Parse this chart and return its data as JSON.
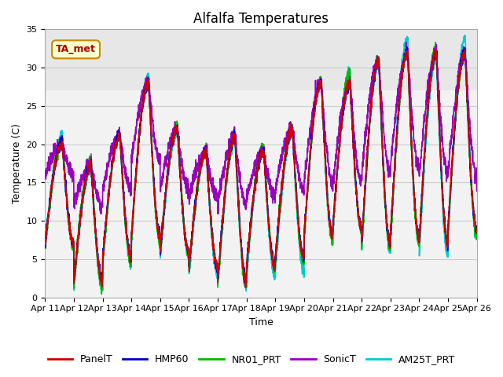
{
  "title": "Alfalfa Temperatures",
  "xlabel": "Time",
  "ylabel": "Temperature (C)",
  "ylim": [
    0,
    35
  ],
  "xlim": [
    0,
    15
  ],
  "x_tick_labels": [
    "Apr 11",
    "Apr 12",
    "Apr 13",
    "Apr 14",
    "Apr 15",
    "Apr 16",
    "Apr 17",
    "Apr 18",
    "Apr 19",
    "Apr 20",
    "Apr 21",
    "Apr 22",
    "Apr 23",
    "Apr 24",
    "Apr 25",
    "Apr 26"
  ],
  "annotation_text": "TA_met",
  "annotation_bg": "#ffffcc",
  "annotation_edge": "#cc8800",
  "annotation_text_color": "#aa0000",
  "series_colors": {
    "PanelT": "#cc0000",
    "HMP60": "#0000cc",
    "NR01_PRT": "#00bb00",
    "SonicT": "#9900bb",
    "AM25T_PRT": "#00cccc"
  },
  "grid_color": "#cccccc",
  "plot_bg": "#f2f2f2",
  "title_fontsize": 12,
  "axis_label_fontsize": 9,
  "tick_fontsize": 8,
  "legend_fontsize": 9,
  "shaded_band_ymin": 27,
  "shaded_band_ymax": 35
}
